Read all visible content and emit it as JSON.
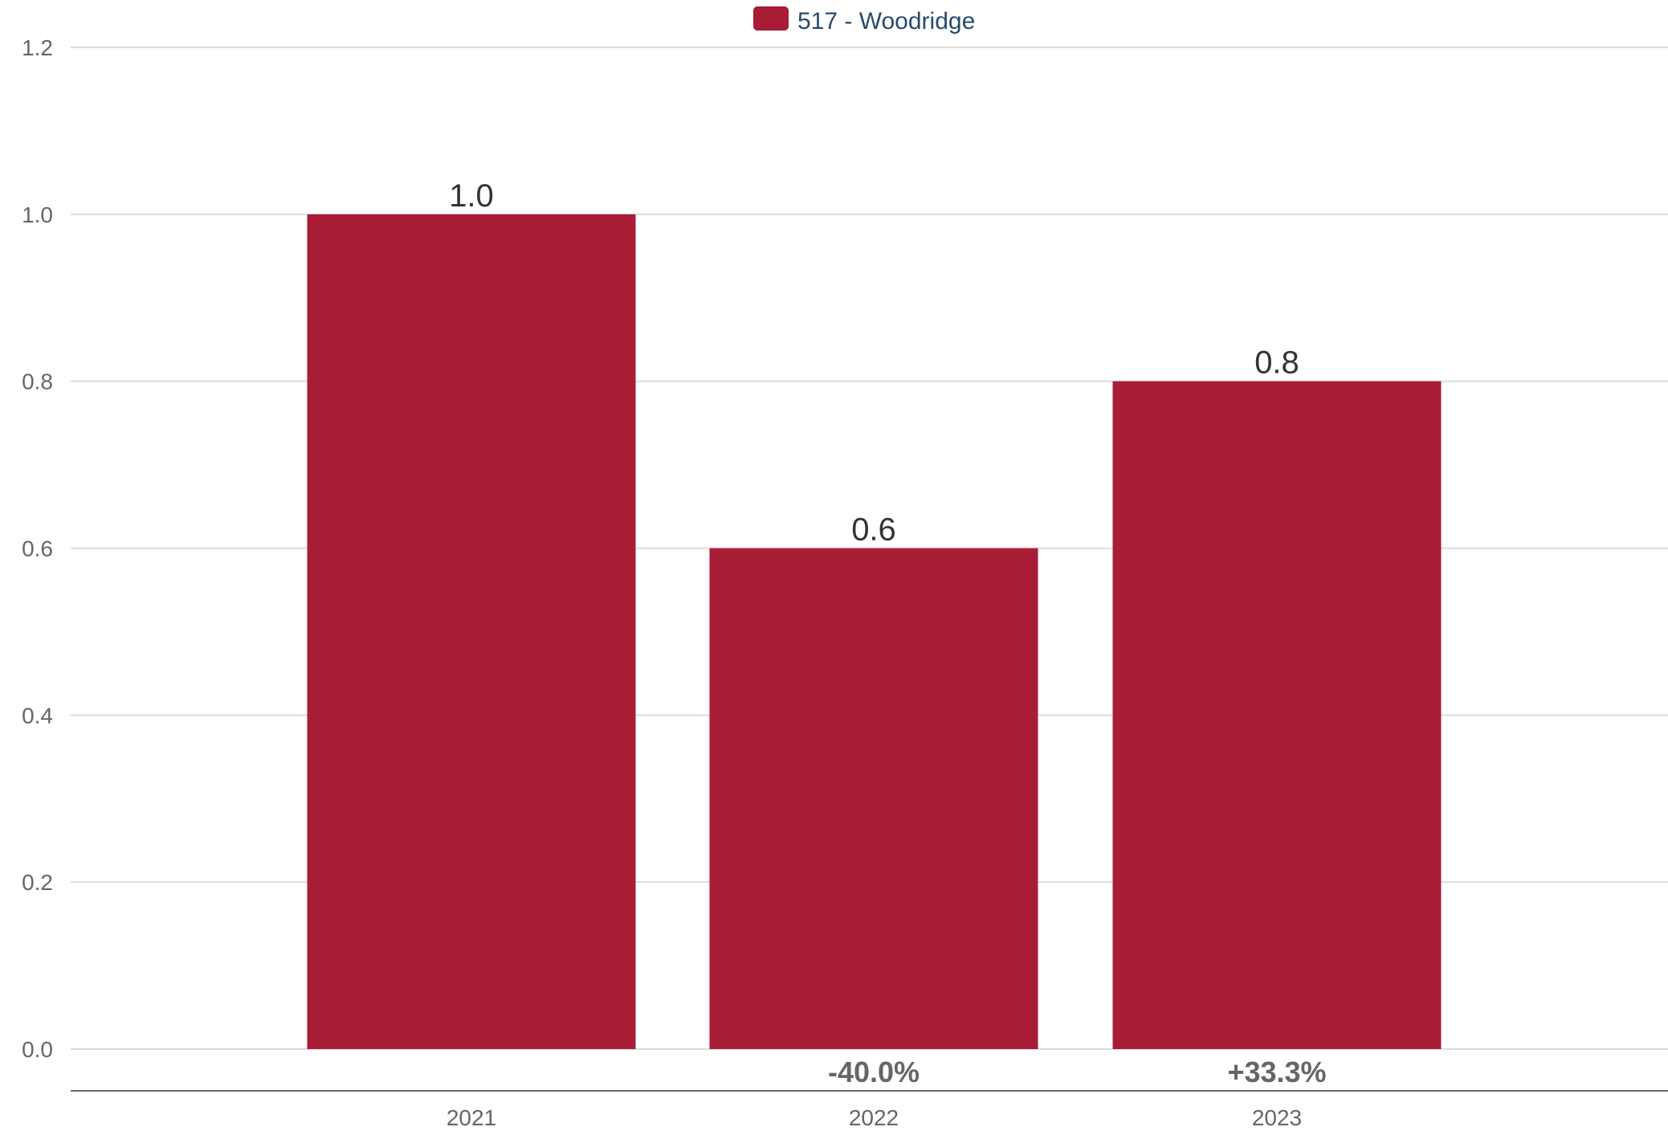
{
  "chart_data": {
    "type": "bar",
    "categories": [
      "2021",
      "2022",
      "2023"
    ],
    "series": [
      {
        "name": "517 - Woodridge",
        "values": [
          1.0,
          0.6,
          0.8
        ],
        "color": "#a81c36"
      }
    ],
    "value_labels": [
      "1.0",
      "0.6",
      "0.8"
    ],
    "change_labels": [
      "",
      "-40.0%",
      "+33.3%"
    ],
    "ylim": [
      0,
      1.2
    ],
    "yticks": [
      0,
      0.2,
      0.4,
      0.6,
      0.8,
      1.0,
      1.2
    ],
    "ytick_labels": [
      "0.0",
      "0.2",
      "0.4",
      "0.6",
      "0.8",
      "1.0",
      "1.2"
    ],
    "grid": true,
    "legend_position": "top-center",
    "title": "",
    "xlabel": "",
    "ylabel": ""
  }
}
